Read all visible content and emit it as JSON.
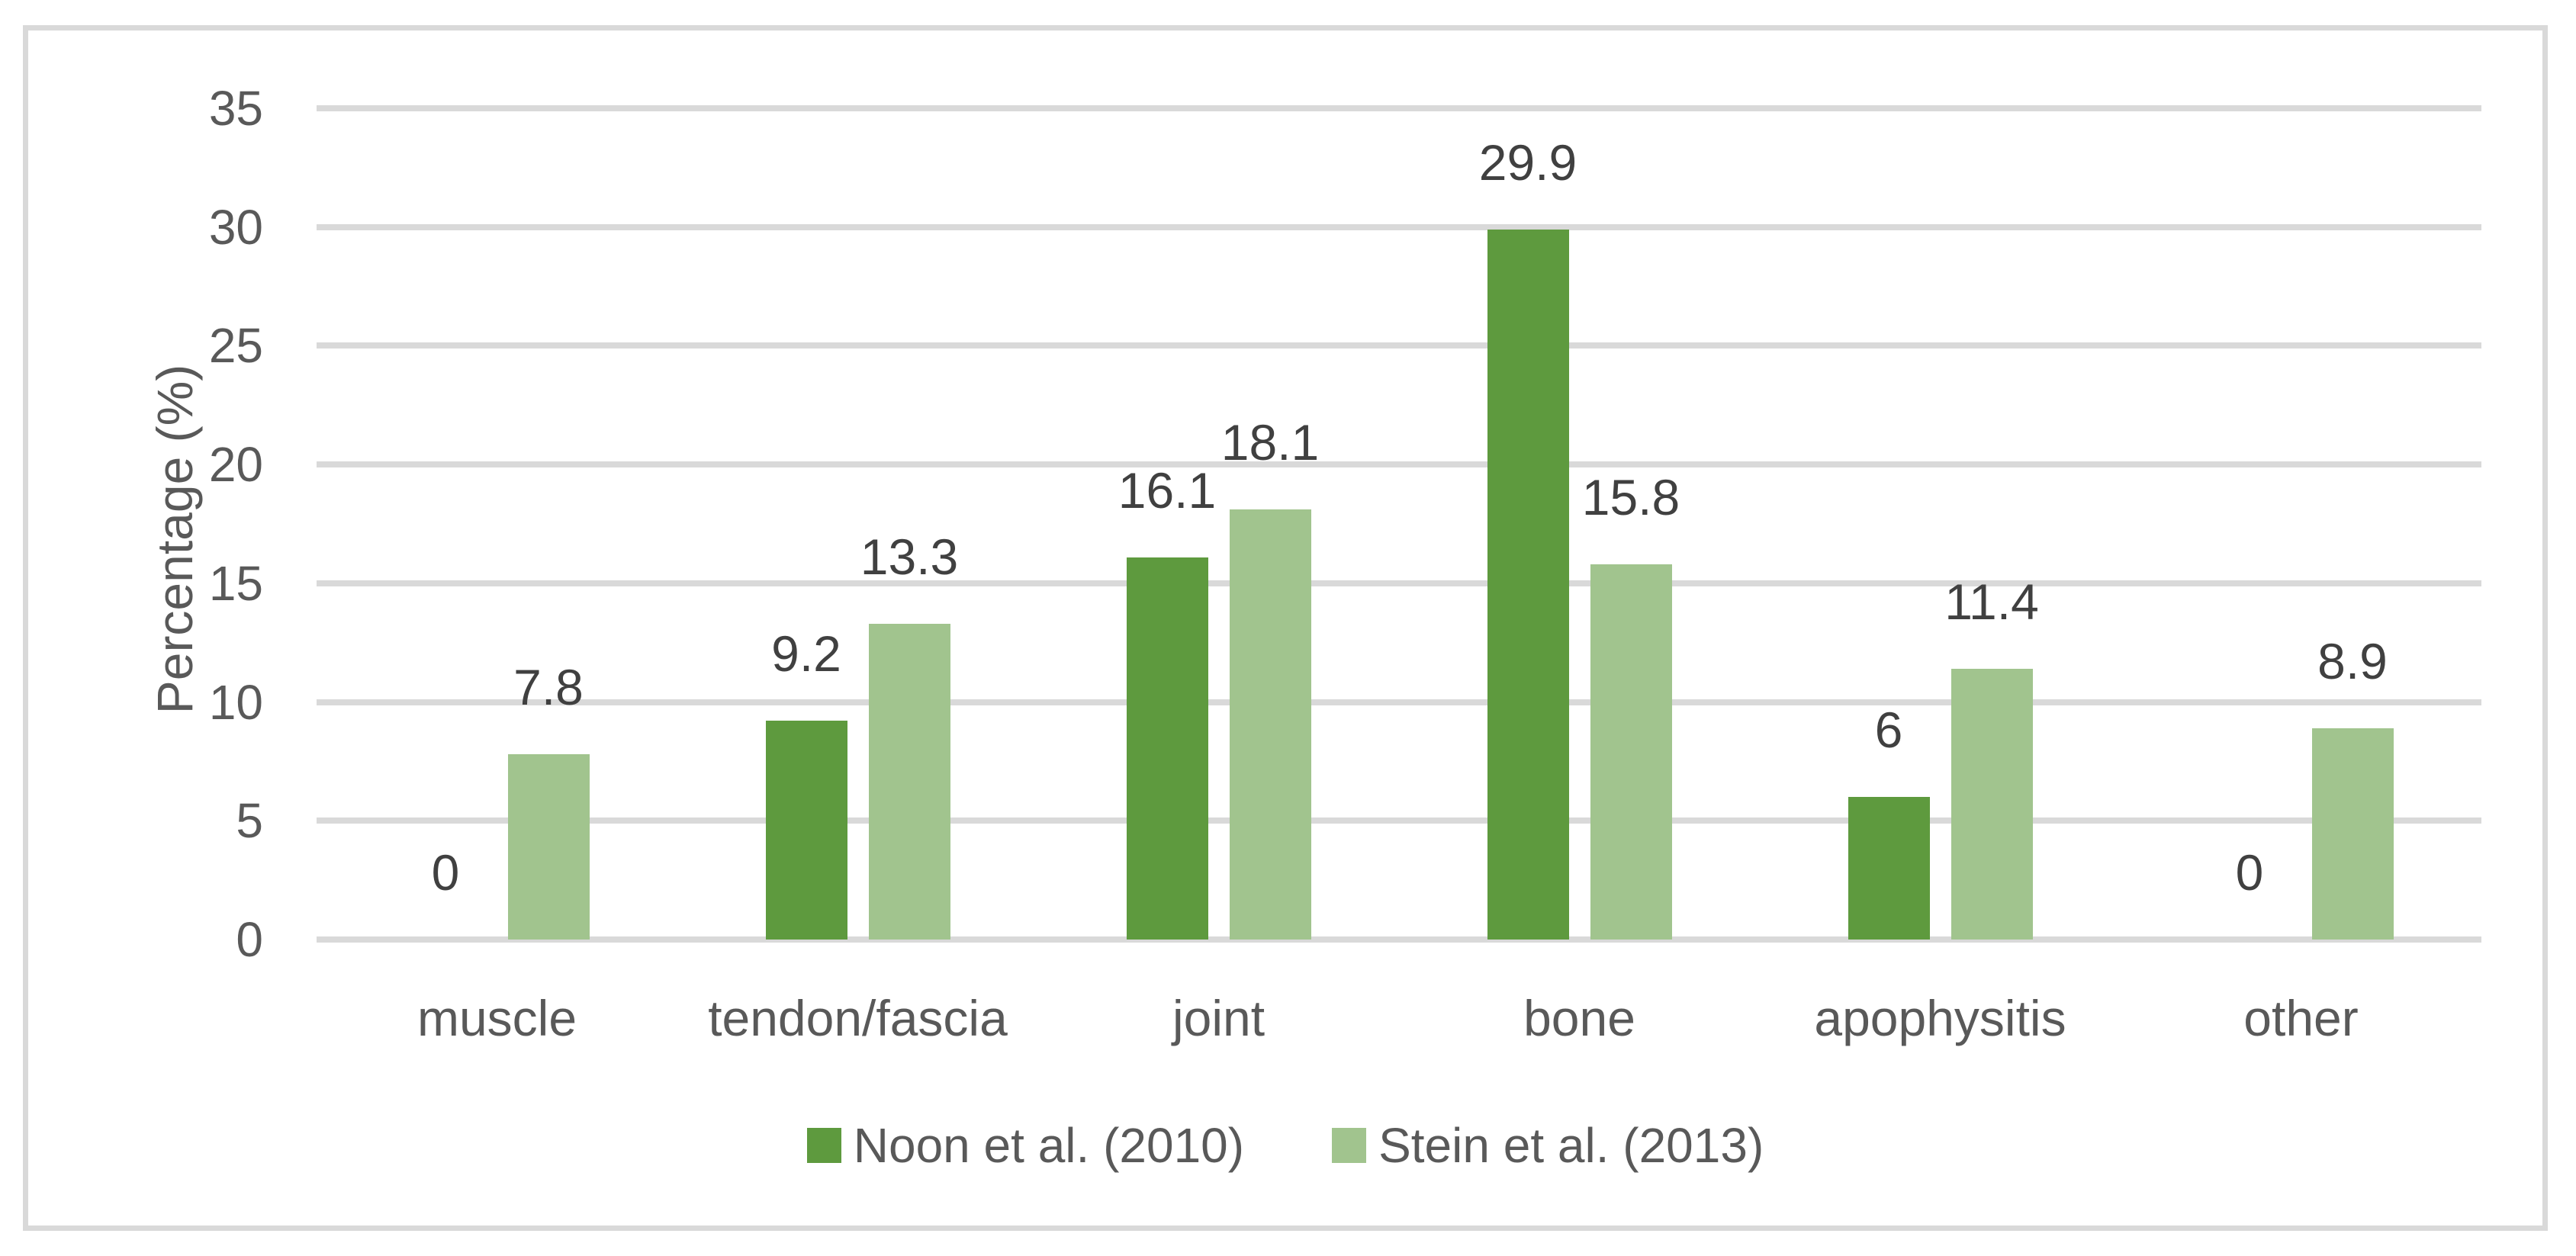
{
  "chart_data": {
    "type": "bar",
    "title": "",
    "ylabel": "Percentage (%)",
    "xlabel": "",
    "categories": [
      "muscle",
      "tendon/fascia",
      "joint",
      "bone",
      "apophysitis",
      "other"
    ],
    "series": [
      {
        "name": "Noon et al. (2010)",
        "color": "#5E9A3E",
        "values": [
          0,
          9.2,
          16.1,
          29.9,
          6,
          0
        ],
        "labels": [
          "0",
          "9.2",
          "16.1",
          "29.9",
          "6",
          "0"
        ]
      },
      {
        "name": "Stein et al. (2013)",
        "color": "#A1C48E",
        "values": [
          7.8,
          13.3,
          18.1,
          15.8,
          11.4,
          8.9
        ],
        "labels": [
          "7.8",
          "13.3",
          "18.1",
          "15.8",
          "11.4",
          "8.9"
        ]
      }
    ],
    "y_axis": {
      "min": 0,
      "max": 35,
      "step": 5,
      "tick_labels": [
        "0",
        "5",
        "10",
        "15",
        "20",
        "25",
        "30",
        "35"
      ]
    },
    "grid": true,
    "legend_position": "bottom",
    "colors": {
      "background": "#FFFFFF",
      "gridline": "#D9D9D9",
      "frame_border": "#D9D9D9",
      "tick_text": "#595959",
      "category_text": "#595959",
      "data_label_text": "#404040",
      "legend_text": "#595959"
    }
  }
}
